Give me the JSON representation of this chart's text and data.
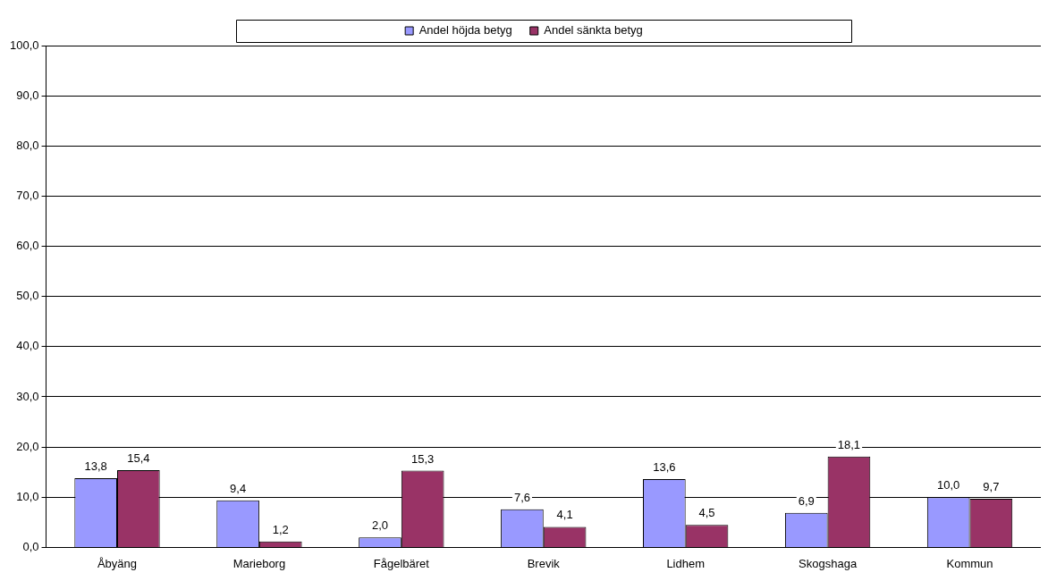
{
  "chart_data": {
    "type": "bar",
    "categories": [
      "Åbyäng",
      "Marieborg",
      "Fågelbäret",
      "Brevik",
      "Lidhem",
      "Skogshaga",
      "Kommun"
    ],
    "series": [
      {
        "name": "Andel höjda betyg",
        "color": "#9999ff",
        "values": [
          13.8,
          9.4,
          2.0,
          7.6,
          13.6,
          6.9,
          10.0
        ],
        "value_labels": [
          "13,8",
          "9,4",
          "2,0",
          "7,6",
          "13,6",
          "6,9",
          "10,0"
        ]
      },
      {
        "name": "Andel sänkta betyg",
        "color": "#993366",
        "values": [
          15.4,
          1.2,
          15.3,
          4.1,
          4.5,
          18.1,
          9.7
        ],
        "value_labels": [
          "15,4",
          "1,2",
          "15,3",
          "4,1",
          "4,5",
          "18,1",
          "9,7"
        ]
      }
    ],
    "ylim": [
      0,
      100
    ],
    "yticks": [
      {
        "value": 0,
        "label": "0,0"
      },
      {
        "value": 10,
        "label": "10,0"
      },
      {
        "value": 20,
        "label": "20,0"
      },
      {
        "value": 30,
        "label": "30,0"
      },
      {
        "value": 40,
        "label": "40,0"
      },
      {
        "value": 50,
        "label": "50,0"
      },
      {
        "value": 60,
        "label": "60,0"
      },
      {
        "value": 70,
        "label": "70,0"
      },
      {
        "value": 80,
        "label": "80,0"
      },
      {
        "value": 90,
        "label": "90,0"
      },
      {
        "value": 100,
        "label": "100,0"
      }
    ],
    "grid": "y",
    "legend": "top"
  }
}
